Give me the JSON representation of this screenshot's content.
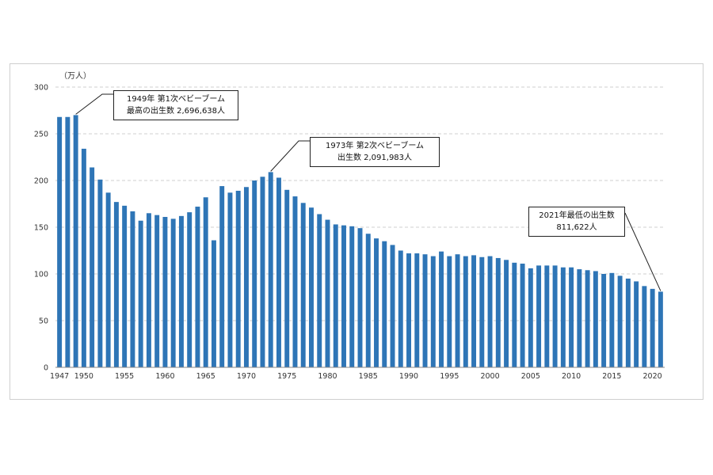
{
  "chart_data": {
    "type": "bar",
    "title": "",
    "xlabel": "",
    "ylabel": "",
    "unit_label": "（万人）",
    "ylim": [
      0,
      300
    ],
    "yticks": [
      0,
      50,
      100,
      150,
      200,
      250,
      300
    ],
    "xtick_labels": [
      "1947",
      "1950",
      "1955",
      "1960",
      "1965",
      "1970",
      "1975",
      "1980",
      "1985",
      "1990",
      "1995",
      "2000",
      "2005",
      "2010",
      "2015",
      "2020"
    ],
    "bar_color": "#2e75b6",
    "grid": true,
    "categories": [
      1947,
      1948,
      1949,
      1950,
      1951,
      1952,
      1953,
      1954,
      1955,
      1956,
      1957,
      1958,
      1959,
      1960,
      1961,
      1962,
      1963,
      1964,
      1965,
      1966,
      1967,
      1968,
      1969,
      1970,
      1971,
      1972,
      1973,
      1974,
      1975,
      1976,
      1977,
      1978,
      1979,
      1980,
      1981,
      1982,
      1983,
      1984,
      1985,
      1986,
      1987,
      1988,
      1989,
      1990,
      1991,
      1992,
      1993,
      1994,
      1995,
      1996,
      1997,
      1998,
      1999,
      2000,
      2001,
      2002,
      2003,
      2004,
      2005,
      2006,
      2007,
      2008,
      2009,
      2010,
      2011,
      2012,
      2013,
      2014,
      2015,
      2016,
      2017,
      2018,
      2019,
      2020,
      2021
    ],
    "series": [
      {
        "name": "出生数（万人）",
        "values": [
          268,
          268,
          270,
          234,
          214,
          201,
          187,
          177,
          173,
          167,
          157,
          165,
          163,
          161,
          159,
          162,
          166,
          172,
          182,
          136,
          194,
          187,
          189,
          193,
          200,
          204,
          209,
          203,
          190,
          183,
          176,
          171,
          164,
          158,
          153,
          152,
          151,
          149,
          143,
          138,
          135,
          131,
          125,
          122,
          122,
          121,
          119,
          124,
          119,
          121,
          119,
          120,
          118,
          119,
          117,
          115,
          112,
          111,
          106,
          109,
          109,
          109,
          107,
          107,
          105,
          104,
          103,
          100,
          101,
          98,
          95,
          92,
          87,
          84,
          81
        ]
      }
    ],
    "annotations": [
      {
        "id": "boom1",
        "target_year": 1949,
        "lines": [
          "1949年  第1次ベビーブーム",
          "最高の出生数  2,696,638人"
        ]
      },
      {
        "id": "boom2",
        "target_year": 1973,
        "lines": [
          "1973年  第2次ベビーブーム",
          "出生数  2,091,983人"
        ]
      },
      {
        "id": "low2021",
        "target_year": 2021,
        "lines": [
          "2021年最低の出生数",
          "811,622人"
        ]
      }
    ]
  }
}
